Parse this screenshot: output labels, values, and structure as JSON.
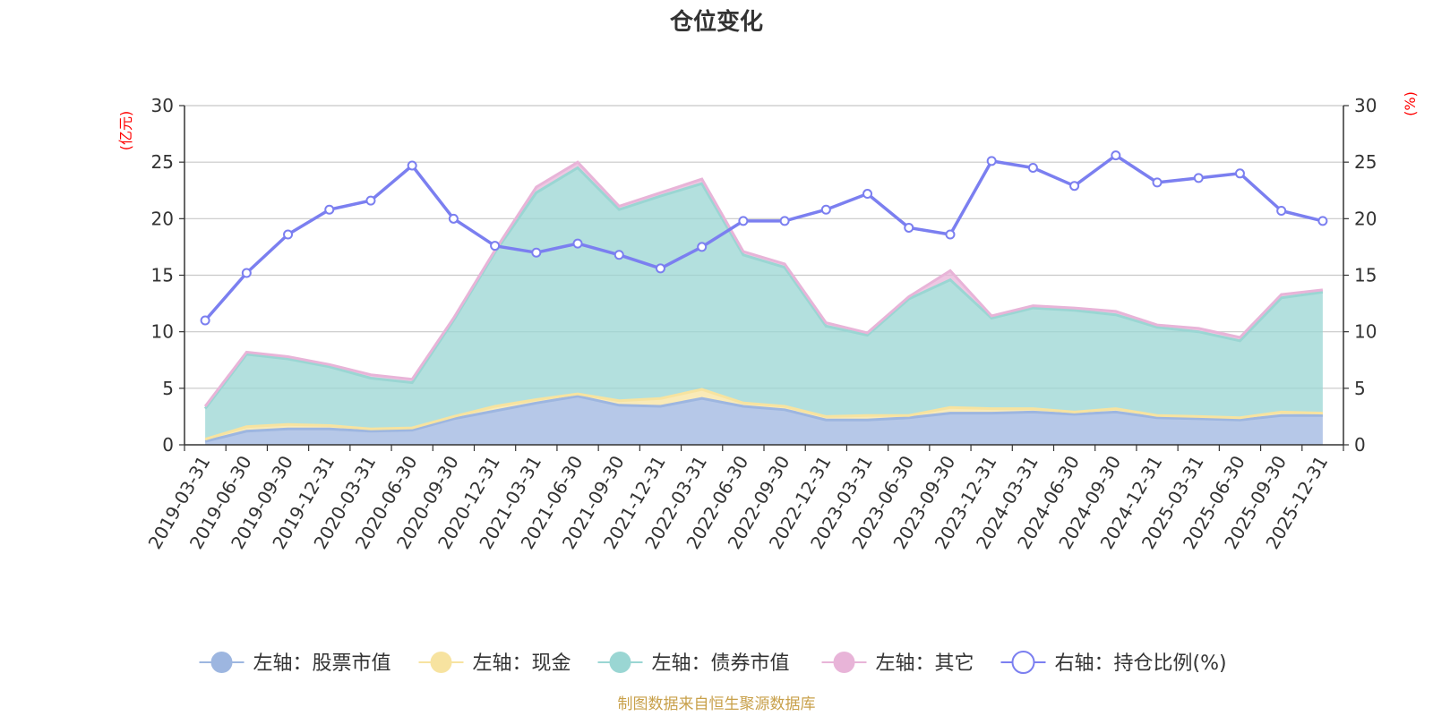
{
  "chart_data": {
    "type": "area",
    "title": "仓位变化",
    "left_unit": "(亿元)",
    "right_unit": "(%)",
    "ylim_left": [
      0,
      30
    ],
    "ylim_right": [
      0,
      30
    ],
    "yticks": [
      "0",
      "5",
      "10",
      "15",
      "20",
      "25",
      "30"
    ],
    "categories": [
      "2019-03-31",
      "2019-06-30",
      "2019-09-30",
      "2019-12-31",
      "2020-03-31",
      "2020-06-30",
      "2020-09-30",
      "2020-12-31",
      "2021-03-31",
      "2021-06-30",
      "2021-09-30",
      "2021-12-31",
      "2022-03-31",
      "2022-06-30",
      "2022-09-30",
      "2022-12-31",
      "2023-03-31",
      "2023-06-30",
      "2023-09-30",
      "2023-12-31",
      "2024-03-31",
      "2024-06-30",
      "2024-09-30",
      "2024-12-31",
      "2025-03-31",
      "2025-06-30",
      "2025-09-30",
      "2025-12-31"
    ],
    "series": [
      {
        "name": "左轴：股票市值",
        "axis": "left",
        "color": "#9db6e0",
        "values": [
          0.3,
          1.2,
          1.4,
          1.4,
          1.2,
          1.3,
          2.3,
          3.0,
          3.7,
          4.3,
          3.5,
          3.4,
          4.1,
          3.4,
          3.1,
          2.2,
          2.2,
          2.4,
          2.8,
          2.8,
          2.9,
          2.7,
          2.9,
          2.4,
          2.3,
          2.2,
          2.6,
          2.6
        ]
      },
      {
        "name": "左轴：现金",
        "axis": "left",
        "color": "#f7e3a0",
        "values": [
          0.2,
          0.4,
          0.4,
          0.3,
          0.2,
          0.2,
          0.2,
          0.4,
          0.3,
          0.2,
          0.4,
          0.7,
          0.8,
          0.3,
          0.3,
          0.3,
          0.4,
          0.2,
          0.5,
          0.4,
          0.3,
          0.2,
          0.3,
          0.2,
          0.2,
          0.2,
          0.3,
          0.2
        ]
      },
      {
        "name": "左轴：债券市值",
        "axis": "left",
        "color": "#9ad6d3",
        "values": [
          2.7,
          6.4,
          5.8,
          5.2,
          4.5,
          4.0,
          8.5,
          13.6,
          18.3,
          20.0,
          16.9,
          17.9,
          18.2,
          13.1,
          12.3,
          8.0,
          7.1,
          10.3,
          11.3,
          8.0,
          8.9,
          9.0,
          8.3,
          7.8,
          7.5,
          6.8,
          10.1,
          10.7
        ]
      },
      {
        "name": "左轴：其它",
        "axis": "left",
        "color": "#e8b4d8",
        "values": [
          0.2,
          0.2,
          0.2,
          0.2,
          0.3,
          0.3,
          0.2,
          0.2,
          0.5,
          0.5,
          0.3,
          0.3,
          0.4,
          0.3,
          0.3,
          0.3,
          0.2,
          0.2,
          0.8,
          0.2,
          0.2,
          0.2,
          0.3,
          0.2,
          0.3,
          0.3,
          0.3,
          0.2
        ]
      },
      {
        "name": "右轴：持仓比例(%)",
        "axis": "right",
        "color": "#7b7ff0",
        "values": [
          11.0,
          15.2,
          18.6,
          20.8,
          21.6,
          24.7,
          20.0,
          17.6,
          17.0,
          17.8,
          16.8,
          15.6,
          17.5,
          19.8,
          19.8,
          20.8,
          22.2,
          19.2,
          18.6,
          25.1,
          24.5,
          22.9,
          25.6,
          23.2,
          23.6,
          24.0,
          20.7,
          19.8
        ]
      }
    ],
    "legend_position": "bottom",
    "source": "制图数据来自恒生聚源数据库"
  }
}
